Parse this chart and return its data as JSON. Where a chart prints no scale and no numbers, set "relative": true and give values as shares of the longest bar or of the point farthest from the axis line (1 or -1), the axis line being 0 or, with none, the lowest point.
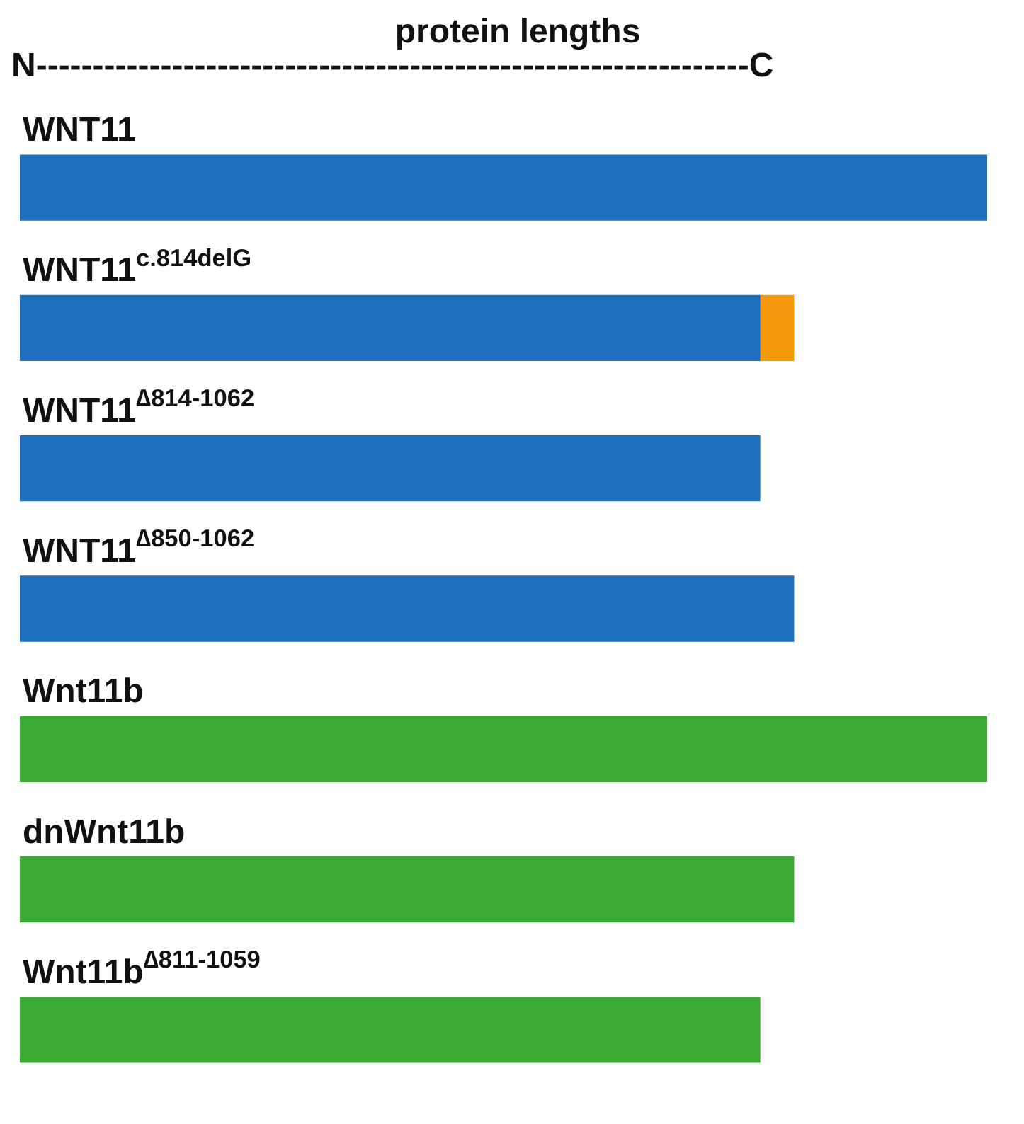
{
  "chart_data": {
    "type": "bar",
    "orientation": "horizontal",
    "stacked": true,
    "relative": true,
    "title": "protein lengths",
    "annotations": [
      "N---------------------------------------------------------------C"
    ],
    "categories": [
      "WNT11",
      "WNT11$^{c.814delG}$",
      "WNT11$^{∆814-1062}$",
      "WNT11$^{∆850-1062}$",
      "Wnt11b",
      "dnWnt11b",
      "Wnt11b$^{∆811-1059}$"
    ],
    "series": [
      {
        "colors": [
          "#1f6fbf",
          "#1f6fbf",
          "#1f6fbf",
          "#1f6fbf",
          "#3aaa35",
          "#3aaa35",
          "#3aaa35"
        ],
        "values": [
          1,
          0.765,
          0.765,
          0.8,
          1,
          0.8,
          0.765
        ]
      },
      {
        "color": "#f59a0c",
        "values": [
          null,
          0.035,
          null,
          null,
          null,
          null,
          null
        ]
      }
    ]
  }
}
